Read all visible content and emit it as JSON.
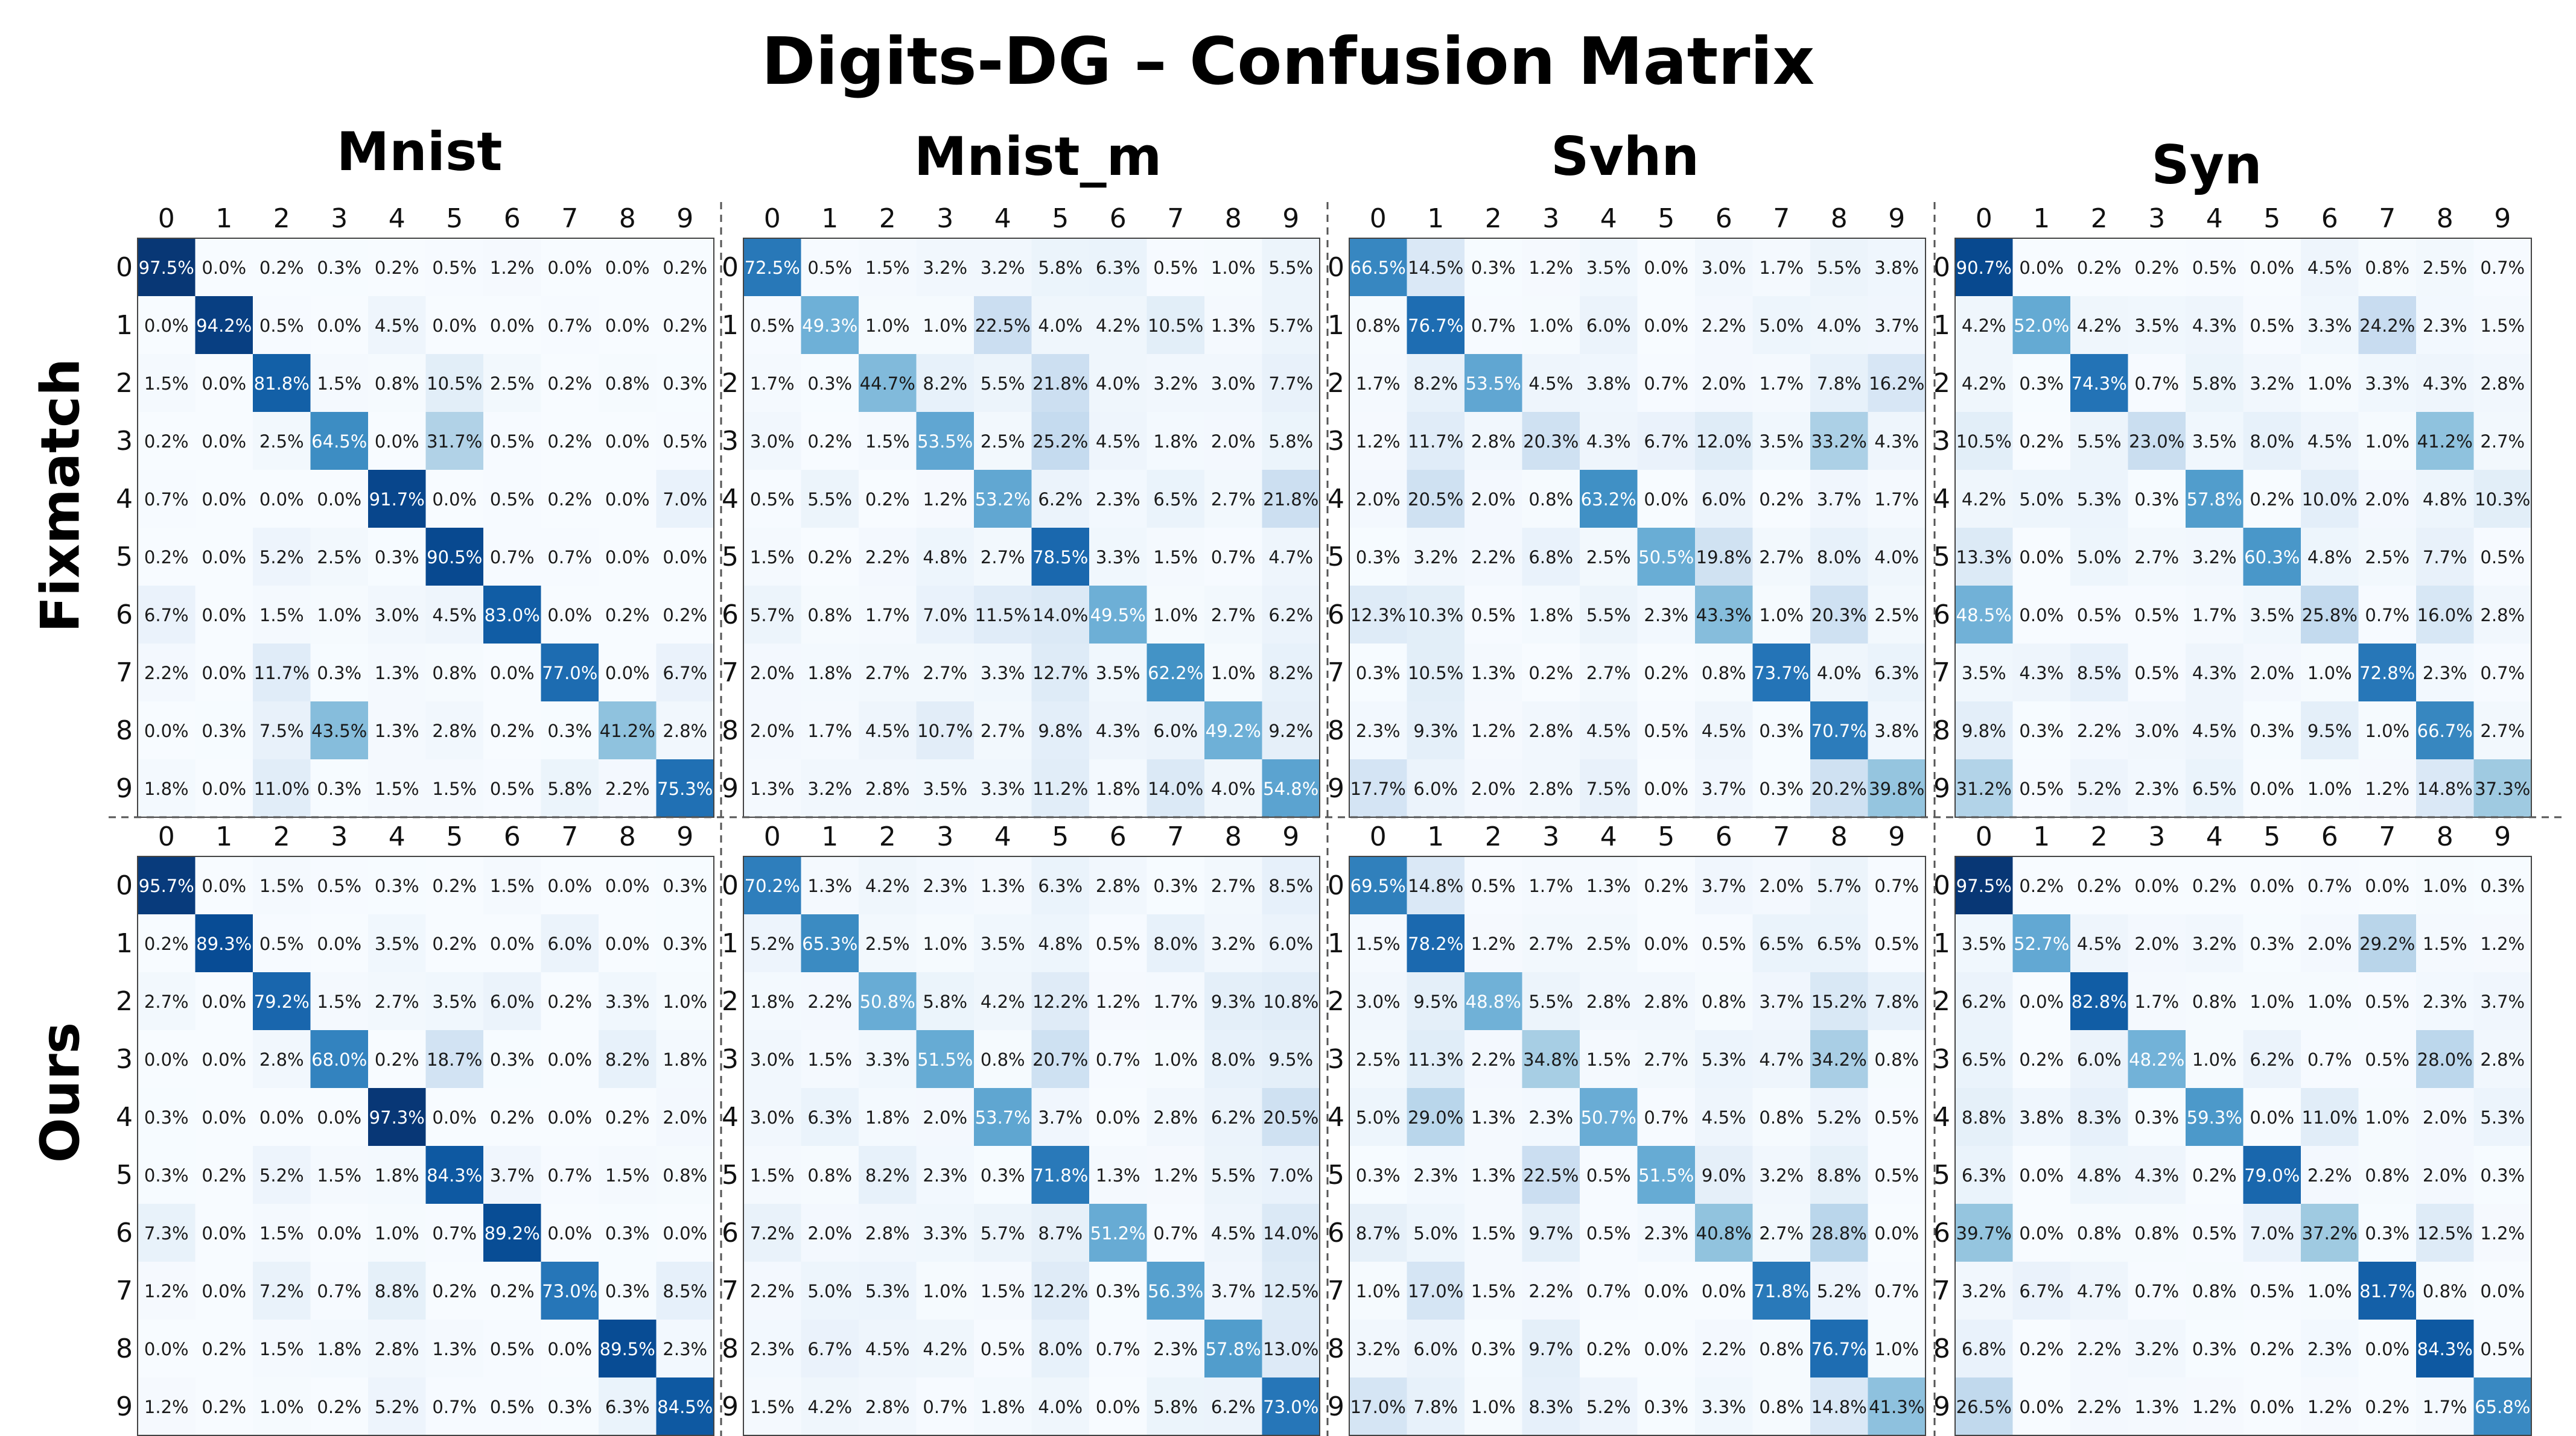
{
  "title": "Digits-DG – Confusion Matrix",
  "column_titles": [
    "Mnist",
    "Mnist_m",
    "Svhn",
    "Syn"
  ],
  "row_titles": [
    "Fixmatch",
    "Ours"
  ],
  "colors": {
    "low": "#f7fbff",
    "high": "#08306b",
    "text_dark": "#1a1a1a",
    "text_light": "#ffffff",
    "divider": "#555555"
  },
  "chart_data": [
    {
      "type": "heatmap",
      "method": "Fixmatch",
      "domain": "Mnist",
      "x_tick_labels": [
        "0",
        "1",
        "2",
        "3",
        "4",
        "5",
        "6",
        "7",
        "8",
        "9"
      ],
      "y_tick_labels": [
        "0",
        "1",
        "2",
        "3",
        "4",
        "5",
        "6",
        "7",
        "8",
        "9"
      ],
      "unit": "%",
      "values": [
        [
          97.5,
          0.0,
          0.2,
          0.3,
          0.2,
          0.5,
          1.2,
          0.0,
          0.0,
          0.2
        ],
        [
          0.0,
          94.2,
          0.5,
          0.0,
          4.5,
          0.0,
          0.0,
          0.7,
          0.0,
          0.2
        ],
        [
          1.5,
          0.0,
          81.8,
          1.5,
          0.8,
          10.5,
          2.5,
          0.2,
          0.8,
          0.3
        ],
        [
          0.2,
          0.0,
          2.5,
          64.5,
          0.0,
          31.7,
          0.5,
          0.2,
          0.0,
          0.5
        ],
        [
          0.7,
          0.0,
          0.0,
          0.0,
          91.7,
          0.0,
          0.5,
          0.2,
          0.0,
          7.0
        ],
        [
          0.2,
          0.0,
          5.2,
          2.5,
          0.3,
          90.5,
          0.7,
          0.7,
          0.0,
          0.0
        ],
        [
          6.7,
          0.0,
          1.5,
          1.0,
          3.0,
          4.5,
          83.0,
          0.0,
          0.2,
          0.2
        ],
        [
          2.2,
          0.0,
          11.7,
          0.3,
          1.3,
          0.8,
          0.0,
          77.0,
          0.0,
          6.7
        ],
        [
          0.0,
          0.3,
          7.5,
          43.5,
          1.3,
          2.8,
          0.2,
          0.3,
          41.2,
          2.8
        ],
        [
          1.8,
          0.0,
          11.0,
          0.3,
          1.5,
          1.5,
          0.5,
          5.8,
          2.2,
          75.3
        ]
      ]
    },
    {
      "type": "heatmap",
      "method": "Fixmatch",
      "domain": "Mnist_m",
      "x_tick_labels": [
        "0",
        "1",
        "2",
        "3",
        "4",
        "5",
        "6",
        "7",
        "8",
        "9"
      ],
      "y_tick_labels": [
        "0",
        "1",
        "2",
        "3",
        "4",
        "5",
        "6",
        "7",
        "8",
        "9"
      ],
      "unit": "%",
      "values": [
        [
          72.5,
          0.5,
          1.5,
          3.2,
          3.2,
          5.8,
          6.3,
          0.5,
          1.0,
          5.5
        ],
        [
          0.5,
          49.3,
          1.0,
          1.0,
          22.5,
          4.0,
          4.2,
          10.5,
          1.3,
          5.7
        ],
        [
          1.7,
          0.3,
          44.7,
          8.2,
          5.5,
          21.8,
          4.0,
          3.2,
          3.0,
          7.7
        ],
        [
          3.0,
          0.2,
          1.5,
          53.5,
          2.5,
          25.2,
          4.5,
          1.8,
          2.0,
          5.8
        ],
        [
          0.5,
          5.5,
          0.2,
          1.2,
          53.2,
          6.2,
          2.3,
          6.5,
          2.7,
          21.8
        ],
        [
          1.5,
          0.2,
          2.2,
          4.8,
          2.7,
          78.5,
          3.3,
          1.5,
          0.7,
          4.7
        ],
        [
          5.7,
          0.8,
          1.7,
          7.0,
          11.5,
          14.0,
          49.5,
          1.0,
          2.7,
          6.2
        ],
        [
          2.0,
          1.8,
          2.7,
          2.7,
          3.3,
          12.7,
          3.5,
          62.2,
          1.0,
          8.2
        ],
        [
          2.0,
          1.7,
          4.5,
          10.7,
          2.7,
          9.8,
          4.3,
          6.0,
          49.2,
          9.2
        ],
        [
          1.3,
          3.2,
          2.8,
          3.5,
          3.3,
          11.2,
          1.8,
          14.0,
          4.0,
          54.8
        ]
      ]
    },
    {
      "type": "heatmap",
      "method": "Fixmatch",
      "domain": "Svhn",
      "x_tick_labels": [
        "0",
        "1",
        "2",
        "3",
        "4",
        "5",
        "6",
        "7",
        "8",
        "9"
      ],
      "y_tick_labels": [
        "0",
        "1",
        "2",
        "3",
        "4",
        "5",
        "6",
        "7",
        "8",
        "9"
      ],
      "unit": "%",
      "values": [
        [
          66.5,
          14.5,
          0.3,
          1.2,
          3.5,
          0.0,
          3.0,
          1.7,
          5.5,
          3.8
        ],
        [
          0.8,
          76.7,
          0.7,
          1.0,
          6.0,
          0.0,
          2.2,
          5.0,
          4.0,
          3.7
        ],
        [
          1.7,
          8.2,
          53.5,
          4.5,
          3.8,
          0.7,
          2.0,
          1.7,
          7.8,
          16.2
        ],
        [
          1.2,
          11.7,
          2.8,
          20.3,
          4.3,
          6.7,
          12.0,
          3.5,
          33.2,
          4.3
        ],
        [
          2.0,
          20.5,
          2.0,
          0.8,
          63.2,
          0.0,
          6.0,
          0.2,
          3.7,
          1.7
        ],
        [
          0.3,
          3.2,
          2.2,
          6.8,
          2.5,
          50.5,
          19.8,
          2.7,
          8.0,
          4.0
        ],
        [
          12.3,
          10.3,
          0.5,
          1.8,
          5.5,
          2.3,
          43.3,
          1.0,
          20.3,
          2.5
        ],
        [
          0.3,
          10.5,
          1.3,
          0.2,
          2.7,
          0.2,
          0.8,
          73.7,
          4.0,
          6.3
        ],
        [
          2.3,
          9.3,
          1.2,
          2.8,
          4.5,
          0.5,
          4.5,
          0.3,
          70.7,
          3.8
        ],
        [
          17.7,
          6.0,
          2.0,
          2.8,
          7.5,
          0.0,
          3.7,
          0.3,
          20.2,
          39.8
        ]
      ]
    },
    {
      "type": "heatmap",
      "method": "Fixmatch",
      "domain": "Syn",
      "x_tick_labels": [
        "0",
        "1",
        "2",
        "3",
        "4",
        "5",
        "6",
        "7",
        "8",
        "9"
      ],
      "y_tick_labels": [
        "0",
        "1",
        "2",
        "3",
        "4",
        "5",
        "6",
        "7",
        "8",
        "9"
      ],
      "unit": "%",
      "values": [
        [
          90.7,
          0.0,
          0.2,
          0.2,
          0.5,
          0.0,
          4.5,
          0.8,
          2.5,
          0.7
        ],
        [
          4.2,
          52.0,
          4.2,
          3.5,
          4.3,
          0.5,
          3.3,
          24.2,
          2.3,
          1.5
        ],
        [
          4.2,
          0.3,
          74.3,
          0.7,
          5.8,
          3.2,
          1.0,
          3.3,
          4.3,
          2.8
        ],
        [
          10.5,
          0.2,
          5.5,
          23.0,
          3.5,
          8.0,
          4.5,
          1.0,
          41.2,
          2.7
        ],
        [
          4.2,
          5.0,
          5.3,
          0.3,
          57.8,
          0.2,
          10.0,
          2.0,
          4.8,
          10.3
        ],
        [
          13.3,
          0.0,
          5.0,
          2.7,
          3.2,
          60.3,
          4.8,
          2.5,
          7.7,
          0.5
        ],
        [
          48.5,
          0.0,
          0.5,
          0.5,
          1.7,
          3.5,
          25.8,
          0.7,
          16.0,
          2.8
        ],
        [
          3.5,
          4.3,
          8.5,
          0.5,
          4.3,
          2.0,
          1.0,
          72.8,
          2.3,
          0.7
        ],
        [
          9.8,
          0.3,
          2.2,
          3.0,
          4.5,
          0.3,
          9.5,
          1.0,
          66.7,
          2.7
        ],
        [
          31.2,
          0.5,
          5.2,
          2.3,
          6.5,
          0.0,
          1.0,
          1.2,
          14.8,
          37.3
        ]
      ]
    },
    {
      "type": "heatmap",
      "method": "Ours",
      "domain": "Mnist",
      "x_tick_labels": [
        "0",
        "1",
        "2",
        "3",
        "4",
        "5",
        "6",
        "7",
        "8",
        "9"
      ],
      "y_tick_labels": [
        "0",
        "1",
        "2",
        "3",
        "4",
        "5",
        "6",
        "7",
        "8",
        "9"
      ],
      "unit": "%",
      "values": [
        [
          95.7,
          0.0,
          1.5,
          0.5,
          0.3,
          0.2,
          1.5,
          0.0,
          0.0,
          0.3
        ],
        [
          0.2,
          89.3,
          0.5,
          0.0,
          3.5,
          0.2,
          0.0,
          6.0,
          0.0,
          0.3
        ],
        [
          2.7,
          0.0,
          79.2,
          1.5,
          2.7,
          3.5,
          6.0,
          0.2,
          3.3,
          1.0
        ],
        [
          0.0,
          0.0,
          2.8,
          68.0,
          0.2,
          18.7,
          0.3,
          0.0,
          8.2,
          1.8
        ],
        [
          0.3,
          0.0,
          0.0,
          0.0,
          97.3,
          0.0,
          0.2,
          0.0,
          0.2,
          2.0
        ],
        [
          0.3,
          0.2,
          5.2,
          1.5,
          1.8,
          84.3,
          3.7,
          0.7,
          1.5,
          0.8
        ],
        [
          7.3,
          0.0,
          1.5,
          0.0,
          1.0,
          0.7,
          89.2,
          0.0,
          0.3,
          0.0
        ],
        [
          1.2,
          0.0,
          7.2,
          0.7,
          8.8,
          0.2,
          0.2,
          73.0,
          0.3,
          8.5
        ],
        [
          0.0,
          0.2,
          1.5,
          1.8,
          2.8,
          1.3,
          0.5,
          0.0,
          89.5,
          2.3
        ],
        [
          1.2,
          0.2,
          1.0,
          0.2,
          5.2,
          0.7,
          0.5,
          0.3,
          6.3,
          84.5
        ]
      ]
    },
    {
      "type": "heatmap",
      "method": "Ours",
      "domain": "Mnist_m",
      "x_tick_labels": [
        "0",
        "1",
        "2",
        "3",
        "4",
        "5",
        "6",
        "7",
        "8",
        "9"
      ],
      "y_tick_labels": [
        "0",
        "1",
        "2",
        "3",
        "4",
        "5",
        "6",
        "7",
        "8",
        "9"
      ],
      "unit": "%",
      "values": [
        [
          70.2,
          1.3,
          4.2,
          2.3,
          1.3,
          6.3,
          2.8,
          0.3,
          2.7,
          8.5
        ],
        [
          5.2,
          65.3,
          2.5,
          1.0,
          3.5,
          4.8,
          0.5,
          8.0,
          3.2,
          6.0
        ],
        [
          1.8,
          2.2,
          50.8,
          5.8,
          4.2,
          12.2,
          1.2,
          1.7,
          9.3,
          10.8
        ],
        [
          3.0,
          1.5,
          3.3,
          51.5,
          0.8,
          20.7,
          0.7,
          1.0,
          8.0,
          9.5
        ],
        [
          3.0,
          6.3,
          1.8,
          2.0,
          53.7,
          3.7,
          0.0,
          2.8,
          6.2,
          20.5
        ],
        [
          1.5,
          0.8,
          8.2,
          2.3,
          0.3,
          71.8,
          1.3,
          1.2,
          5.5,
          7.0
        ],
        [
          7.2,
          2.0,
          2.8,
          3.3,
          5.7,
          8.7,
          51.2,
          0.7,
          4.5,
          14.0
        ],
        [
          2.2,
          5.0,
          5.3,
          1.0,
          1.5,
          12.2,
          0.3,
          56.3,
          3.7,
          12.5
        ],
        [
          2.3,
          6.7,
          4.5,
          4.2,
          0.5,
          8.0,
          0.7,
          2.3,
          57.8,
          13.0
        ],
        [
          1.5,
          4.2,
          2.8,
          0.7,
          1.8,
          4.0,
          0.0,
          5.8,
          6.2,
          73.0
        ]
      ]
    },
    {
      "type": "heatmap",
      "method": "Ours",
      "domain": "Svhn",
      "x_tick_labels": [
        "0",
        "1",
        "2",
        "3",
        "4",
        "5",
        "6",
        "7",
        "8",
        "9"
      ],
      "y_tick_labels": [
        "0",
        "1",
        "2",
        "3",
        "4",
        "5",
        "6",
        "7",
        "8",
        "9"
      ],
      "unit": "%",
      "values": [
        [
          69.5,
          14.8,
          0.5,
          1.7,
          1.3,
          0.2,
          3.7,
          2.0,
          5.7,
          0.7
        ],
        [
          1.5,
          78.2,
          1.2,
          2.7,
          2.5,
          0.0,
          0.5,
          6.5,
          6.5,
          0.5
        ],
        [
          3.0,
          9.5,
          48.8,
          5.5,
          2.8,
          2.8,
          0.8,
          3.7,
          15.2,
          7.8
        ],
        [
          2.5,
          11.3,
          2.2,
          34.8,
          1.5,
          2.7,
          5.3,
          4.7,
          34.2,
          0.8
        ],
        [
          5.0,
          29.0,
          1.3,
          2.3,
          50.7,
          0.7,
          4.5,
          0.8,
          5.2,
          0.5
        ],
        [
          0.3,
          2.3,
          1.3,
          22.5,
          0.5,
          51.5,
          9.0,
          3.2,
          8.8,
          0.5
        ],
        [
          8.7,
          5.0,
          1.5,
          9.7,
          0.5,
          2.3,
          40.8,
          2.7,
          28.8,
          0.0
        ],
        [
          1.0,
          17.0,
          1.5,
          2.2,
          0.7,
          0.0,
          0.0,
          71.8,
          5.2,
          0.7
        ],
        [
          3.2,
          6.0,
          0.3,
          9.7,
          0.2,
          0.0,
          2.2,
          0.8,
          76.7,
          1.0
        ],
        [
          17.0,
          7.8,
          1.0,
          8.3,
          5.2,
          0.3,
          3.3,
          0.8,
          14.8,
          41.3
        ]
      ]
    },
    {
      "type": "heatmap",
      "method": "Ours",
      "domain": "Syn",
      "x_tick_labels": [
        "0",
        "1",
        "2",
        "3",
        "4",
        "5",
        "6",
        "7",
        "8",
        "9"
      ],
      "y_tick_labels": [
        "0",
        "1",
        "2",
        "3",
        "4",
        "5",
        "6",
        "7",
        "8",
        "9"
      ],
      "unit": "%",
      "values": [
        [
          97.5,
          0.2,
          0.2,
          0.0,
          0.2,
          0.0,
          0.7,
          0.0,
          1.0,
          0.3
        ],
        [
          3.5,
          52.7,
          4.5,
          2.0,
          3.2,
          0.3,
          2.0,
          29.2,
          1.5,
          1.2
        ],
        [
          6.2,
          0.0,
          82.8,
          1.7,
          0.8,
          1.0,
          1.0,
          0.5,
          2.3,
          3.7
        ],
        [
          6.5,
          0.2,
          6.0,
          48.2,
          1.0,
          6.2,
          0.7,
          0.5,
          28.0,
          2.8
        ],
        [
          8.8,
          3.8,
          8.3,
          0.3,
          59.3,
          0.0,
          11.0,
          1.0,
          2.0,
          5.3
        ],
        [
          6.3,
          0.0,
          4.8,
          4.3,
          0.2,
          79.0,
          2.2,
          0.8,
          2.0,
          0.3
        ],
        [
          39.7,
          0.0,
          0.8,
          0.8,
          0.5,
          7.0,
          37.2,
          0.3,
          12.5,
          1.2
        ],
        [
          3.2,
          6.7,
          4.7,
          0.7,
          0.8,
          0.5,
          1.0,
          81.7,
          0.8,
          0.0
        ],
        [
          6.8,
          0.2,
          2.2,
          3.2,
          0.3,
          0.2,
          2.3,
          0.0,
          84.3,
          0.5
        ],
        [
          26.5,
          0.0,
          2.2,
          1.3,
          1.2,
          0.0,
          1.2,
          0.2,
          1.7,
          65.8
        ]
      ]
    }
  ]
}
